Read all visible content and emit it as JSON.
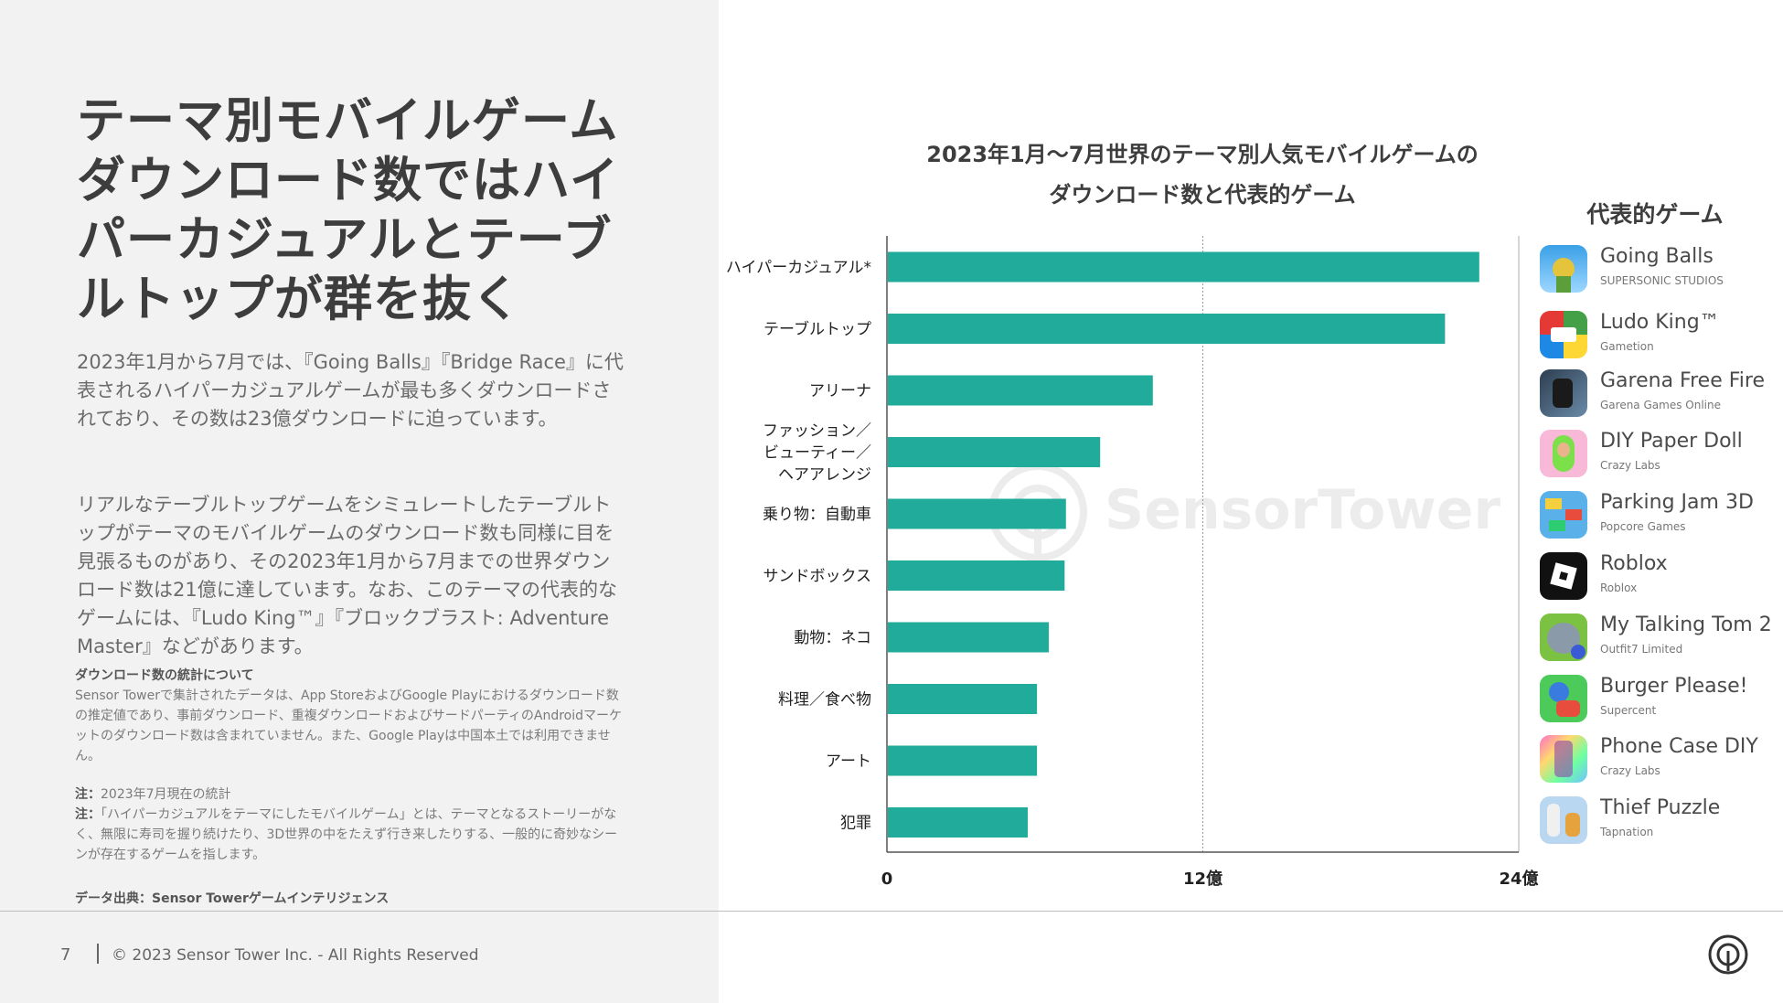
{
  "headline": "テーマ別モバイルゲームダウンロード数ではハイパーカジュアルとテーブルトップが群を抜く",
  "paragraph1": "2023年1月から7月では、『Going Balls』『Bridge Race』に代表されるハイパーカジュアルゲームが最も多くダウンロードされており、その数は23億ダウンロードに迫っています。",
  "paragraph2": "リアルなテーブルトップゲームをシミュレートしたテーブルトップがテーマのモバイルゲームのダウンロード数も同様に目を見張るものがあり、その2023年1月から7月までの世界ダウンロード数は21億に達しています。なお、このテーマの代表的なゲームには、『Ludo King™』『ブロックブラスト: Adventure Master』などがあります。",
  "notes": {
    "stats_heading": "ダウンロード数の統計について",
    "stats_body": "Sensor Towerで集計されたデータは、App StoreおよびGoogle Playにおけるダウンロード数の推定値であり、事前ダウンロード、重複ダウンロードおよびサードパーティのAndroidマーケットのダウンロード数は含まれていません。また、Google Playは中国本土では利用できません。",
    "note1_label": "注：",
    "note1_text": "2023年7月現在の統計",
    "note2_label": "注：",
    "note2_text": "「ハイパーカジュアルをテーマにしたモバイルゲーム」とは、テーマとなるストーリーがなく、無限に寿司を握り続けたり、3D世界の中をたえず行き来したりする、一般的に奇妙なシーンが存在するゲームを指します。",
    "source": "データ出典：Sensor Towerゲームインテリジェンス"
  },
  "footer": {
    "page_number": "7",
    "copyright": "© 2023 Sensor Tower Inc. - All Rights Reserved"
  },
  "watermark_text": "SensorTower",
  "colors": {
    "bar": "#21ab9a",
    "left_bg": "#f2f2f2",
    "text_dark": "#3d3d3d"
  },
  "chart_data": {
    "type": "bar",
    "orientation": "horizontal",
    "title_line1": "2023年1月～7月世界のテーマ別人気モバイルゲームの",
    "title_line2": "ダウンロード数と代表的ゲーム",
    "categories": [
      "ハイパーカジュアル*",
      "テーブルトップ",
      "アリーナ",
      "ファッション／ビューティー／ヘアアレンジ",
      "乗り物：自動車",
      "サンドボックス",
      "動物：ネコ",
      "料理／食べ物",
      "アート",
      "犯罪"
    ],
    "category_lines": [
      [
        "ハイパーカジュアル*"
      ],
      [
        "テーブルトップ"
      ],
      [
        "アリーナ"
      ],
      [
        "ファッション／",
        "ビューティー／",
        "ヘアアレンジ"
      ],
      [
        "乗り物：自動車"
      ],
      [
        "サンドボックス"
      ],
      [
        "動物：ネコ"
      ],
      [
        "料理／食べ物"
      ],
      [
        "アート"
      ],
      [
        "犯罪"
      ]
    ],
    "values": [
      22.5,
      21.2,
      10.1,
      8.1,
      6.8,
      6.75,
      6.15,
      5.7,
      5.7,
      5.35
    ],
    "unit": "億",
    "xlim": [
      0,
      24
    ],
    "ticks": [
      0,
      12,
      24
    ],
    "tick_labels": [
      "0",
      "12億",
      "24億"
    ],
    "grid": "vertical dashed line at 12億"
  },
  "games": {
    "title": "代表的ゲーム",
    "items": [
      {
        "name": "Going Balls",
        "developer": "SUPERSONIC STUDIOS",
        "icon": "going-balls-icon"
      },
      {
        "name": "Ludo King™",
        "developer": "Gametion",
        "icon": "ludo-king-icon"
      },
      {
        "name": "Garena Free Fire",
        "developer": "Garena Games Online",
        "icon": "free-fire-icon"
      },
      {
        "name": "DIY Paper Doll",
        "developer": "Crazy Labs",
        "icon": "paper-doll-icon"
      },
      {
        "name": "Parking Jam 3D",
        "developer": "Popcore Games",
        "icon": "parking-jam-icon"
      },
      {
        "name": "Roblox",
        "developer": "Roblox",
        "icon": "roblox-icon"
      },
      {
        "name": "My Talking Tom 2",
        "developer": "Outfit7 Limited",
        "icon": "talking-tom-icon"
      },
      {
        "name": "Burger Please!",
        "developer": "Supercent",
        "icon": "burger-please-icon"
      },
      {
        "name": "Phone Case DIY",
        "developer": "Crazy Labs",
        "icon": "phone-case-icon"
      },
      {
        "name": "Thief Puzzle",
        "developer": "Tapnation",
        "icon": "thief-puzzle-icon"
      }
    ]
  }
}
